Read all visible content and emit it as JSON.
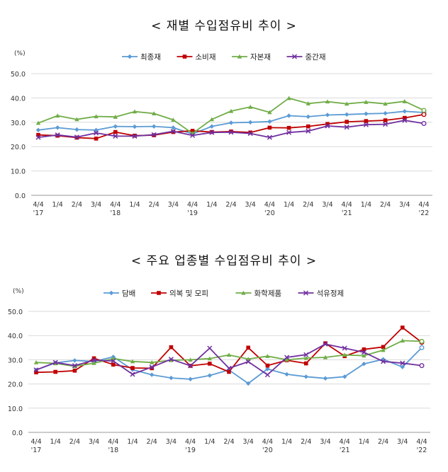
{
  "chart_data": [
    {
      "type": "line",
      "title": "< 재별  수입점유비  추이  >",
      "unit_label": "(%)",
      "ylim": [
        0,
        50
      ],
      "yticks": [
        "0.0",
        "10.0",
        "20.0",
        "30.0",
        "40.0",
        "50.0"
      ],
      "categories": [
        "4/4 '17",
        "1/4",
        "2/4",
        "3/4",
        "4/4 '18",
        "1/4",
        "2/4",
        "3/4",
        "4/4 '19",
        "1/4",
        "2/4",
        "3/4",
        "4/4 '20",
        "1/4",
        "2/4",
        "3/4",
        "4/4 '21",
        "1/4",
        "2/4",
        "3/4",
        "4/4 '22"
      ],
      "category_lines": [
        [
          "4/4",
          "'17"
        ],
        [
          "1/4"
        ],
        [
          "2/4"
        ],
        [
          "3/4"
        ],
        [
          "4/4",
          "'18"
        ],
        [
          "1/4"
        ],
        [
          "2/4"
        ],
        [
          "3/4"
        ],
        [
          "4/4",
          "'19"
        ],
        [
          "1/4"
        ],
        [
          "2/4"
        ],
        [
          "3/4"
        ],
        [
          "4/4",
          "'20"
        ],
        [
          "1/4"
        ],
        [
          "2/4"
        ],
        [
          "3/4"
        ],
        [
          "4/4",
          "'21"
        ],
        [
          "1/4"
        ],
        [
          "2/4"
        ],
        [
          "3/4"
        ],
        [
          "4/4",
          "'22"
        ]
      ],
      "series": [
        {
          "name": "최종재",
          "color": "#5b9bd5",
          "marker": "diamond",
          "values": [
            26.8,
            27.8,
            27.0,
            26.8,
            28.3,
            28.2,
            28.3,
            27.8,
            25.2,
            28.3,
            29.8,
            30.0,
            30.3,
            32.7,
            32.3,
            33.0,
            33.2,
            33.5,
            33.7,
            34.5,
            34.0
          ]
        },
        {
          "name": "소비재",
          "color": "#c00000",
          "marker": "square",
          "values": [
            24.8,
            24.5,
            23.7,
            23.3,
            26.0,
            24.5,
            24.7,
            26.0,
            26.5,
            26.0,
            26.2,
            25.8,
            27.8,
            27.7,
            28.3,
            29.3,
            30.2,
            30.5,
            30.8,
            31.8,
            33.2
          ]
        },
        {
          "name": "자본재",
          "color": "#70ad47",
          "marker": "triangle",
          "values": [
            29.7,
            32.7,
            31.2,
            32.4,
            32.2,
            34.4,
            33.6,
            31.0,
            25.4,
            31.2,
            34.6,
            36.3,
            34.1,
            39.9,
            37.7,
            38.5,
            37.6,
            38.3,
            37.6,
            38.6,
            34.9
          ]
        },
        {
          "name": "중간재",
          "color": "#7030a0",
          "marker": "x",
          "values": [
            23.8,
            24.8,
            23.9,
            25.6,
            24.3,
            24.3,
            24.9,
            26.3,
            24.6,
            25.8,
            25.9,
            25.4,
            23.8,
            25.8,
            26.4,
            28.5,
            28.0,
            29.0,
            29.2,
            30.8,
            29.5
          ]
        }
      ]
    },
    {
      "type": "line",
      "title": "< 주요  업종별  수입점유비  추이  >",
      "unit_label": "(%)",
      "ylim": [
        0,
        50
      ],
      "yticks": [
        "0.0",
        "10.0",
        "20.0",
        "30.0",
        "40.0",
        "50.0"
      ],
      "categories": [
        "4/4 '17",
        "1/4",
        "2/4",
        "3/4",
        "4/4 '18",
        "1/4",
        "2/4",
        "3/4",
        "4/4 '19",
        "1/4",
        "2/4",
        "3/4",
        "4/4 '20",
        "1/4",
        "2/4",
        "3/4",
        "4/4 '21",
        "1/4",
        "2/4",
        "3/4",
        "4/4 '22"
      ],
      "category_lines": [
        [
          "4/4",
          "'17"
        ],
        [
          "1/4"
        ],
        [
          "2/4"
        ],
        [
          "3/4"
        ],
        [
          "4/4",
          "'18"
        ],
        [
          "1/4"
        ],
        [
          "2/4"
        ],
        [
          "3/4"
        ],
        [
          "4/4",
          "'19"
        ],
        [
          "1/4"
        ],
        [
          "2/4"
        ],
        [
          "3/4"
        ],
        [
          "4/4",
          "'20"
        ],
        [
          "1/4"
        ],
        [
          "2/4"
        ],
        [
          "3/4"
        ],
        [
          "4/4",
          "'21"
        ],
        [
          "1/4"
        ],
        [
          "2/4"
        ],
        [
          "3/4"
        ],
        [
          "4/4",
          "'22"
        ]
      ],
      "series": [
        {
          "name": "담배",
          "color": "#5b9bd5",
          "marker": "diamond",
          "values": [
            25.8,
            28.7,
            29.7,
            29.3,
            31.2,
            25.9,
            23.8,
            22.5,
            22.0,
            23.5,
            25.8,
            20.2,
            26.2,
            24.0,
            23.0,
            22.3,
            23.0,
            28.3,
            30.2,
            27.0,
            35.0
          ]
        },
        {
          "name": "의복 및 모피",
          "color": "#c00000",
          "marker": "square",
          "values": [
            24.8,
            25.0,
            25.5,
            30.6,
            28.0,
            26.6,
            26.5,
            35.2,
            27.5,
            28.4,
            25.0,
            35.0,
            27.6,
            29.8,
            28.5,
            36.8,
            31.5,
            34.3,
            35.3,
            43.3,
            37.2
          ]
        },
        {
          "name": "화학제품",
          "color": "#70ad47",
          "marker": "triangle",
          "values": [
            28.9,
            28.5,
            27.3,
            28.6,
            30.5,
            29.3,
            28.9,
            29.8,
            30.0,
            30.5,
            32.0,
            30.3,
            31.5,
            30.0,
            30.7,
            31.0,
            32.0,
            31.7,
            34.0,
            37.9,
            37.6
          ]
        },
        {
          "name": "석유정제",
          "color": "#7030a0",
          "marker": "x",
          "values": [
            25.8,
            28.9,
            27.6,
            29.8,
            29.5,
            24.0,
            27.0,
            30.2,
            27.5,
            34.8,
            26.5,
            29.2,
            23.8,
            31.0,
            32.1,
            36.5,
            34.8,
            33.1,
            29.3,
            28.6,
            27.6
          ]
        }
      ]
    }
  ]
}
